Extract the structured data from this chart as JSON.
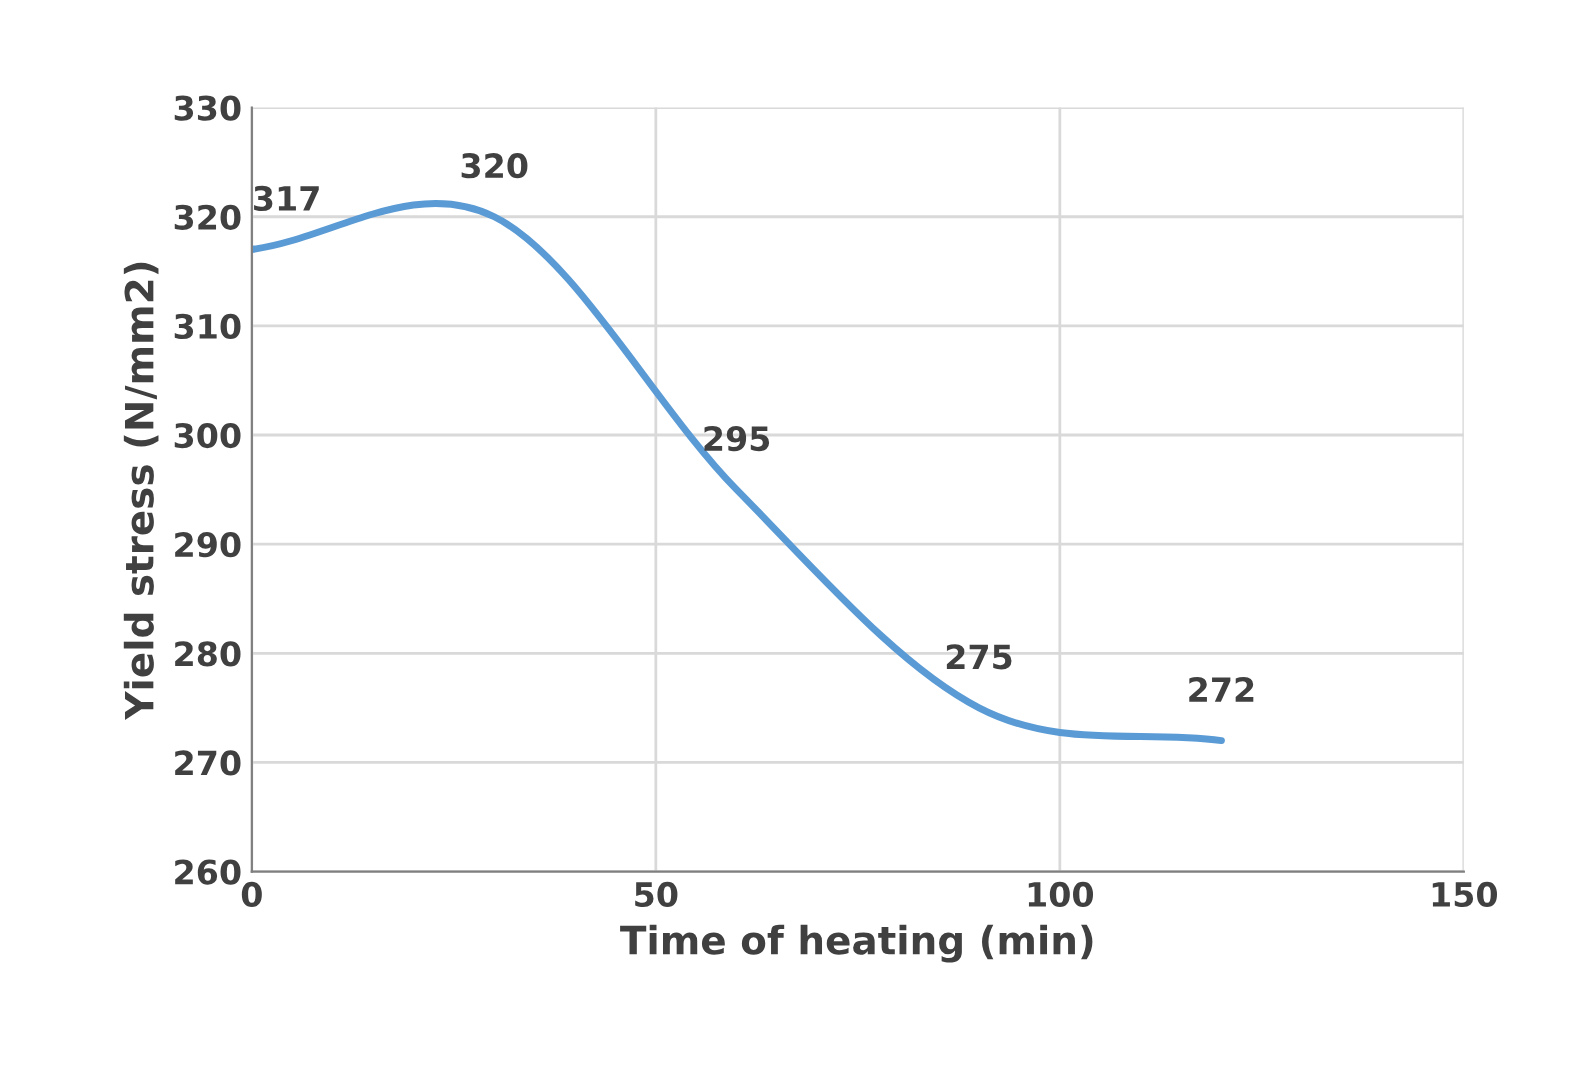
{
  "chart_data": {
    "type": "line",
    "xlabel": "Time of heating (min)",
    "ylabel": "Yield stress (N/mm2)",
    "x": [
      0,
      30,
      60,
      90,
      120
    ],
    "series": [
      {
        "color": "#5b9bd5",
        "values": [
          317,
          320,
          295,
          275,
          272
        ]
      }
    ],
    "xlim": [
      0,
      150
    ],
    "xticks": [
      0,
      50,
      100,
      150
    ],
    "ylim": [
      260,
      330
    ],
    "yticks": [
      260,
      270,
      280,
      290,
      300,
      310,
      320,
      330
    ],
    "grid": true,
    "data_labels": true,
    "marker": "none",
    "line_style": "solid"
  }
}
